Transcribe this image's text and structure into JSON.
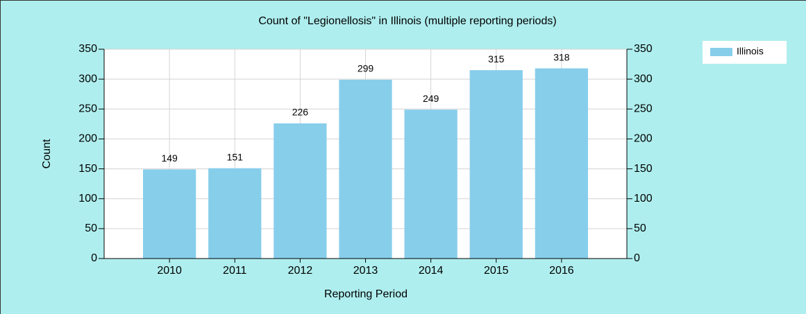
{
  "chart_data": {
    "type": "bar",
    "title": "Count of \"Legionellosis\" in Illinois (multiple reporting periods)",
    "xlabel": "Reporting Period",
    "ylabel": "Count",
    "categories": [
      "2010",
      "2011",
      "2012",
      "2013",
      "2014",
      "2015",
      "2016"
    ],
    "series": [
      {
        "name": "Illinois",
        "color": "#87ceeb",
        "values": [
          149,
          151,
          226,
          299,
          249,
          315,
          318
        ]
      }
    ],
    "ylim": [
      0,
      350
    ],
    "yticks": [
      0,
      50,
      100,
      150,
      200,
      250,
      300,
      350
    ],
    "y2lim": [
      0,
      350
    ],
    "y2ticks": [
      0,
      50,
      100,
      150,
      200,
      250,
      300,
      350
    ],
    "grid": true,
    "legend": "top-right"
  }
}
